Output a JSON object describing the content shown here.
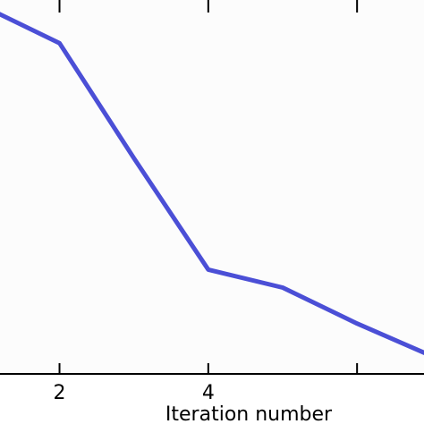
{
  "chart_data": {
    "type": "line",
    "xlabel": "Iteration number",
    "xlim": [
      1.2,
      6.9
    ],
    "ylim": [
      0,
      1
    ],
    "x_ticks": [
      2,
      4,
      6
    ],
    "x_tick_labels": [
      "2",
      "4",
      ""
    ],
    "grid": false,
    "series": [
      {
        "color": "#4b4fd6",
        "x": [
          1,
          2,
          3,
          4,
          5,
          6,
          7
        ],
        "y": [
          1.02,
          0.92,
          0.6,
          0.29,
          0.24,
          0.14,
          0.05
        ]
      }
    ]
  },
  "colors": {
    "plot_background": "#fcfcfc",
    "axes": "#000000"
  }
}
